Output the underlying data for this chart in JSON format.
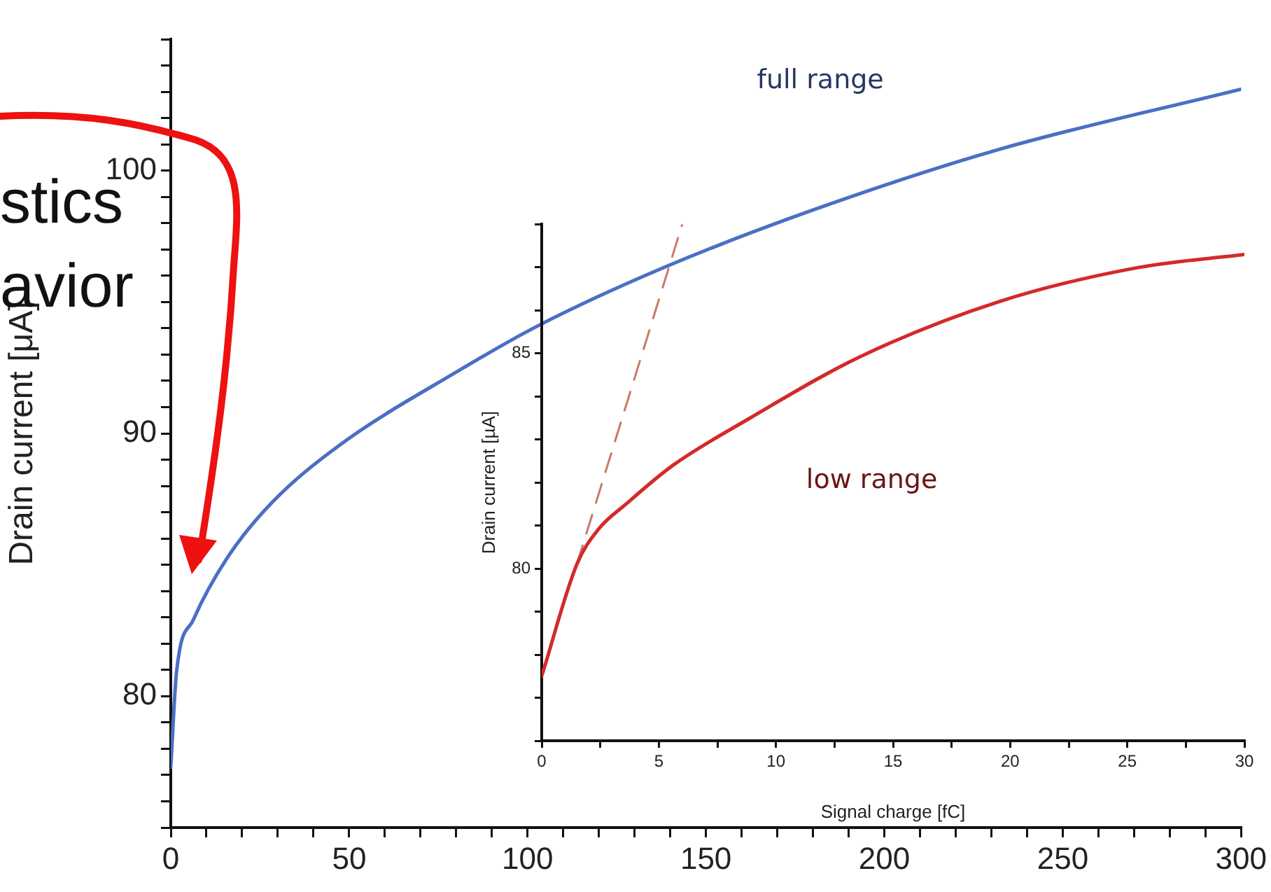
{
  "chart_data": [
    {
      "type": "line",
      "ylabel": "Drain current [μA]",
      "annotations": [
        "stics",
        "avior"
      ],
      "x": [
        0,
        1.6,
        6.3,
        16,
        28.6,
        47.8,
        79.6,
        103,
        138,
        180,
        232,
        300
      ],
      "series": [
        {
          "name": "full range",
          "color": "#4a6fc4",
          "values": [
            77.3,
            80.9,
            82.9,
            85.3,
            87.4,
            89.6,
            92.3,
            94.1,
            96.3,
            98.5,
            100.8,
            103.1
          ]
        }
      ],
      "xlim": [
        0,
        300
      ],
      "xticks": [
        0,
        {
          "value": 10,
          "label": null
        },
        {
          "value": 20,
          "label": null
        },
        {
          "value": 30,
          "label": null
        },
        {
          "value": 40,
          "label": null
        },
        50,
        {
          "value": 60,
          "label": null
        },
        {
          "value": 70,
          "label": null
        },
        {
          "value": 80,
          "label": null
        },
        {
          "value": 90,
          "label": null
        },
        100,
        {
          "value": 110,
          "label": null
        },
        {
          "value": 120,
          "label": null
        },
        {
          "value": 130,
          "label": null
        },
        {
          "value": 140,
          "label": null
        },
        150,
        {
          "value": 160,
          "label": null
        },
        {
          "value": 170,
          "label": null
        },
        {
          "value": 180,
          "label": null
        },
        {
          "value": 190,
          "label": null
        },
        200,
        {
          "value": 210,
          "label": null
        },
        {
          "value": 220,
          "label": null
        },
        {
          "value": 230,
          "label": null
        },
        {
          "value": 240,
          "label": null
        },
        250,
        {
          "value": 260,
          "label": null
        },
        {
          "value": 270,
          "label": null
        },
        {
          "value": 280,
          "label": null
        },
        {
          "value": 290,
          "label": null
        },
        300
      ],
      "ylim": [
        75,
        105
      ],
      "yticks": [
        {
          "value": 75,
          "label": null
        },
        {
          "value": 76,
          "label": null
        },
        {
          "value": 77,
          "label": null
        },
        {
          "value": 78,
          "label": null
        },
        {
          "value": 79,
          "label": null
        },
        80,
        {
          "value": 81,
          "label": null
        },
        {
          "value": 82,
          "label": null
        },
        {
          "value": 83,
          "label": null
        },
        {
          "value": 84,
          "label": null
        },
        {
          "value": 85,
          "label": null
        },
        {
          "value": 86,
          "label": null
        },
        {
          "value": 87,
          "label": null
        },
        {
          "value": 88,
          "label": null
        },
        {
          "value": 89,
          "label": null
        },
        90,
        {
          "value": 91,
          "label": null
        },
        {
          "value": 92,
          "label": null
        },
        {
          "value": 93,
          "label": null
        },
        {
          "value": 94,
          "label": null
        },
        {
          "value": 95,
          "label": null
        },
        {
          "value": 96,
          "label": null
        },
        {
          "value": 97,
          "label": null
        },
        {
          "value": 98,
          "label": null
        },
        {
          "value": 99,
          "label": null
        },
        100,
        {
          "value": 101,
          "label": null
        },
        {
          "value": 102,
          "label": null
        },
        {
          "value": 103,
          "label": null
        },
        {
          "value": 104,
          "label": null
        },
        {
          "value": 105,
          "label": null
        }
      ],
      "grid": false,
      "legend": false,
      "marker": "none"
    },
    {
      "type": "line",
      "xlabel": "Signal charge [fC]",
      "ylabel": "Drain current [µA]",
      "x": [
        0,
        1.5,
        2.4,
        3.6,
        5.6,
        8.9,
        13.5,
        19.5,
        25.5,
        30
      ],
      "series": [
        {
          "name": "low range",
          "color": "#d42a2a",
          "values": [
            77.5,
            80.1,
            80.9,
            81.5,
            82.4,
            83.5,
            84.9,
            86.2,
            87.0,
            87.3
          ]
        },
        {
          "color": "#c97a68",
          "x": [
            1.5,
            6.0
          ],
          "values": [
            80.1,
            88.0
          ],
          "line_style": "dashed"
        }
      ],
      "xlim": [
        0,
        30
      ],
      "xticks": [
        0,
        {
          "value": 2.5,
          "label": null
        },
        5,
        {
          "value": 7.5,
          "label": null
        },
        10,
        {
          "value": 12.5,
          "label": null
        },
        15,
        {
          "value": 17.5,
          "label": null
        },
        20,
        {
          "value": 22.5,
          "label": null
        },
        25,
        {
          "value": 27.5,
          "label": null
        },
        30
      ],
      "ylim": [
        76,
        88
      ],
      "yticks": [
        {
          "value": 76,
          "label": null
        },
        {
          "value": 77,
          "label": null
        },
        {
          "value": 78,
          "label": null
        },
        {
          "value": 79,
          "label": null
        },
        80,
        {
          "value": 81,
          "label": null
        },
        {
          "value": 82,
          "label": null
        },
        {
          "value": 83,
          "label": null
        },
        {
          "value": 84,
          "label": null
        },
        85,
        {
          "value": 86,
          "label": null
        },
        {
          "value": 87,
          "label": null
        },
        {
          "value": 88,
          "label": null
        }
      ],
      "grid": false,
      "legend": false,
      "marker": "none"
    }
  ]
}
